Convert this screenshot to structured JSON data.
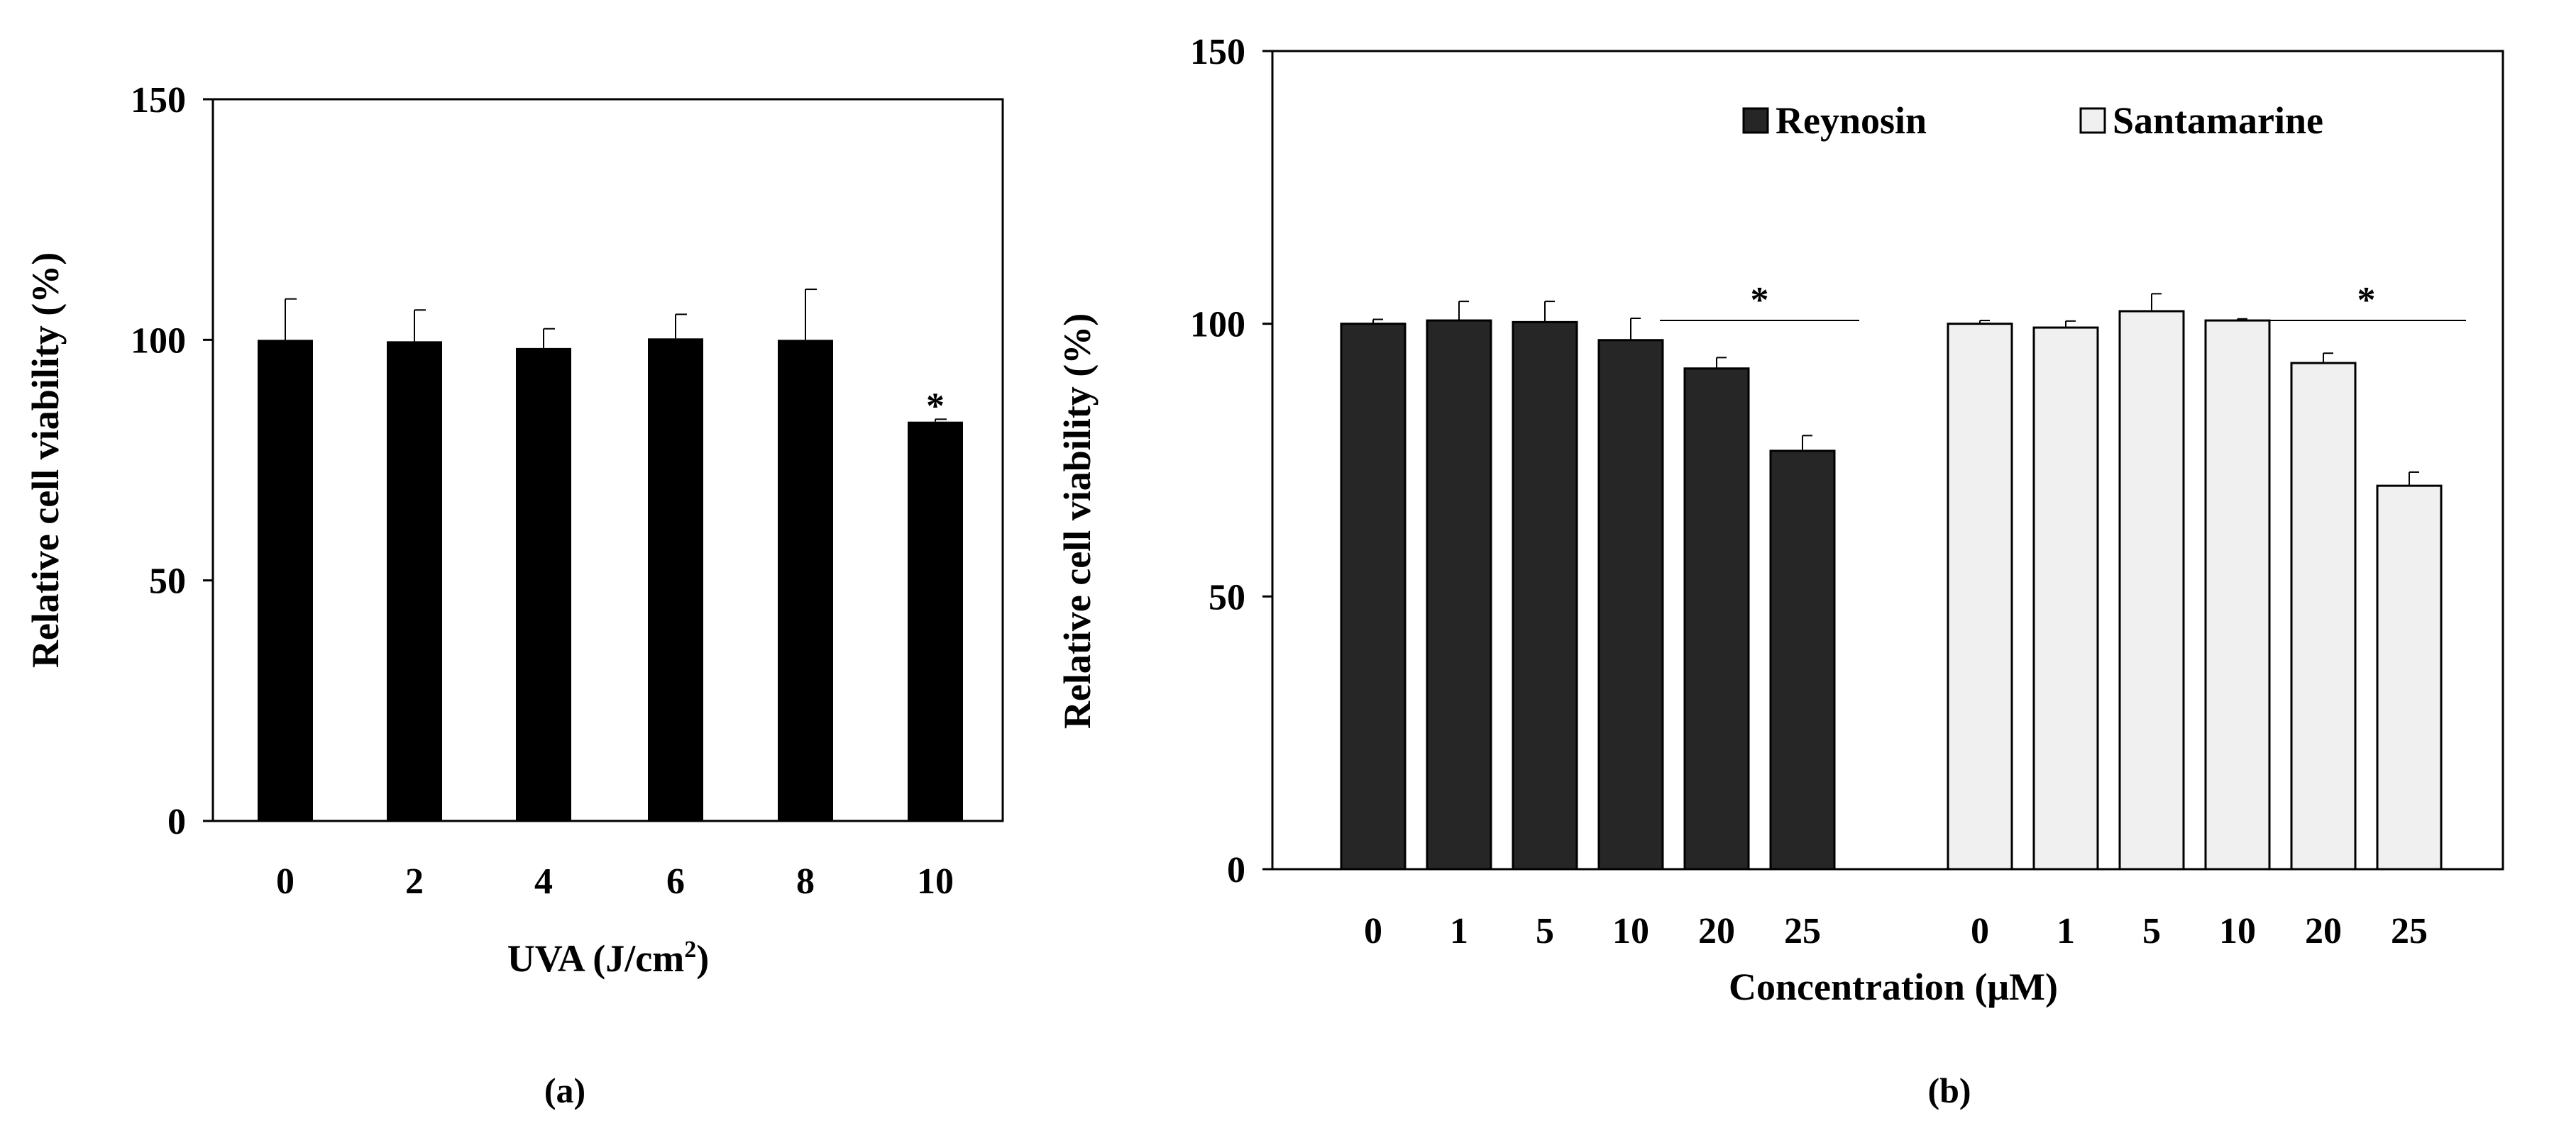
{
  "colors": {
    "bar_a": "#000000",
    "reynosin": "#262626",
    "santamarine": "#f0f0f0",
    "stroke": "#000000"
  },
  "chart_data": [
    {
      "type": "bar",
      "panel_label": "(a)",
      "title": "",
      "xlabel": "UVA (J/cm",
      "xlabel_sup": "2",
      "xlabel_end": ")",
      "ylabel": "Relative cell viability (%)",
      "ylim": [
        0,
        150
      ],
      "yticks": [
        "0",
        "50",
        "100",
        "150"
      ],
      "categories": [
        "0",
        "2",
        "4",
        "6",
        "8",
        "10"
      ],
      "values": [
        100,
        99.7,
        98.3,
        100.3,
        100,
        83
      ],
      "errors": [
        8.5,
        6.5,
        4,
        5,
        10.5,
        0.5
      ],
      "significance": [
        {
          "label": "*",
          "index": 5
        }
      ]
    },
    {
      "type": "bar",
      "panel_label": "(b)",
      "title": "",
      "xlabel": "Concentration (μM)",
      "ylabel": "Relative cell viability (%)",
      "ylim": [
        0,
        150
      ],
      "yticks": [
        "0",
        "50",
        "100",
        "150"
      ],
      "legend": [
        "Reynosin",
        "Santamarine"
      ],
      "legend_position": "top-right",
      "series": [
        {
          "name": "Reynosin",
          "categories": [
            "0",
            "1",
            "5",
            "10",
            "20",
            "25"
          ],
          "values": [
            100,
            100.6,
            100.3,
            97,
            91.8,
            76.7
          ],
          "errors": [
            0.8,
            3.5,
            3.8,
            4,
            2,
            2.8
          ]
        },
        {
          "name": "Santamarine",
          "categories": [
            "0",
            "1",
            "5",
            "10",
            "20",
            "25"
          ],
          "values": [
            100,
            99.3,
            102.3,
            100.6,
            92.8,
            70.3
          ],
          "errors": [
            0.6,
            1.2,
            3.2,
            0.3,
            1.8,
            2.5
          ]
        }
      ],
      "significance": [
        {
          "label": "*",
          "series": 0,
          "from_index": 4,
          "to_index": 5
        },
        {
          "label": "*",
          "series": 1,
          "from_index": 4,
          "to_index": 5
        }
      ]
    }
  ]
}
